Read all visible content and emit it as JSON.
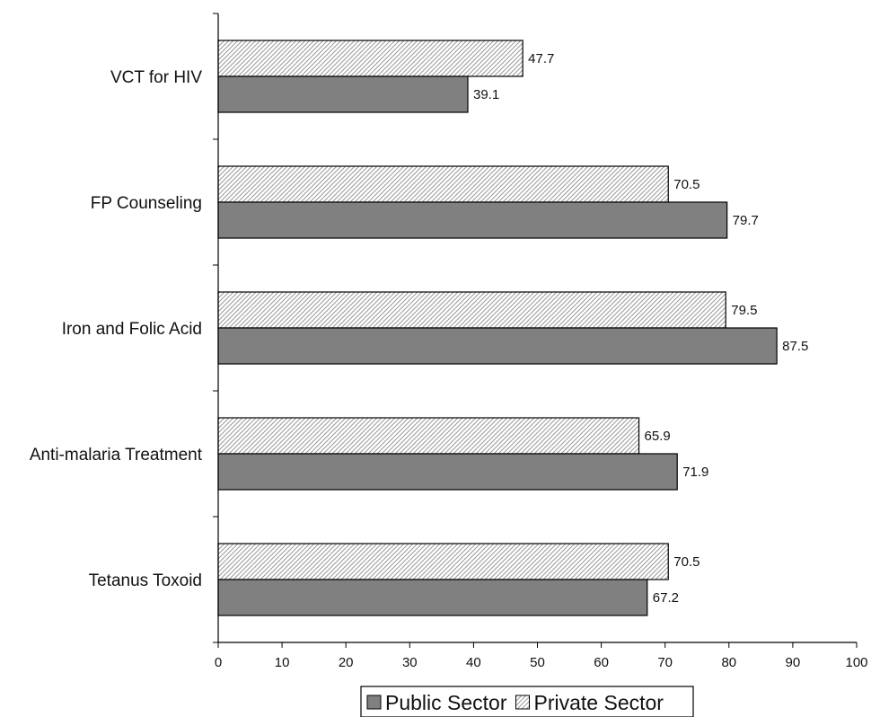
{
  "chart_data": {
    "type": "bar",
    "orientation": "horizontal",
    "categories": [
      "VCT for HIV",
      "FP Counseling",
      "Iron and Folic Acid",
      "Anti-malaria Treatment",
      "Tetanus Toxoid"
    ],
    "series": [
      {
        "name": "Private Sector",
        "values": [
          47.7,
          70.5,
          79.5,
          65.9,
          70.5
        ],
        "color": "#ffffff",
        "pattern": "diagonal-hatch"
      },
      {
        "name": "Public Sector",
        "values": [
          39.1,
          79.7,
          87.5,
          71.9,
          67.2
        ],
        "color": "#808080"
      }
    ],
    "x_ticks": [
      0,
      10,
      20,
      30,
      40,
      50,
      60,
      70,
      80,
      90,
      100
    ],
    "xlim": [
      0,
      100
    ],
    "title": "",
    "xlabel": "",
    "ylabel": "",
    "grid": false,
    "legend": {
      "position": "bottom",
      "entries": [
        "Public Sector",
        "Private Sector"
      ]
    }
  }
}
